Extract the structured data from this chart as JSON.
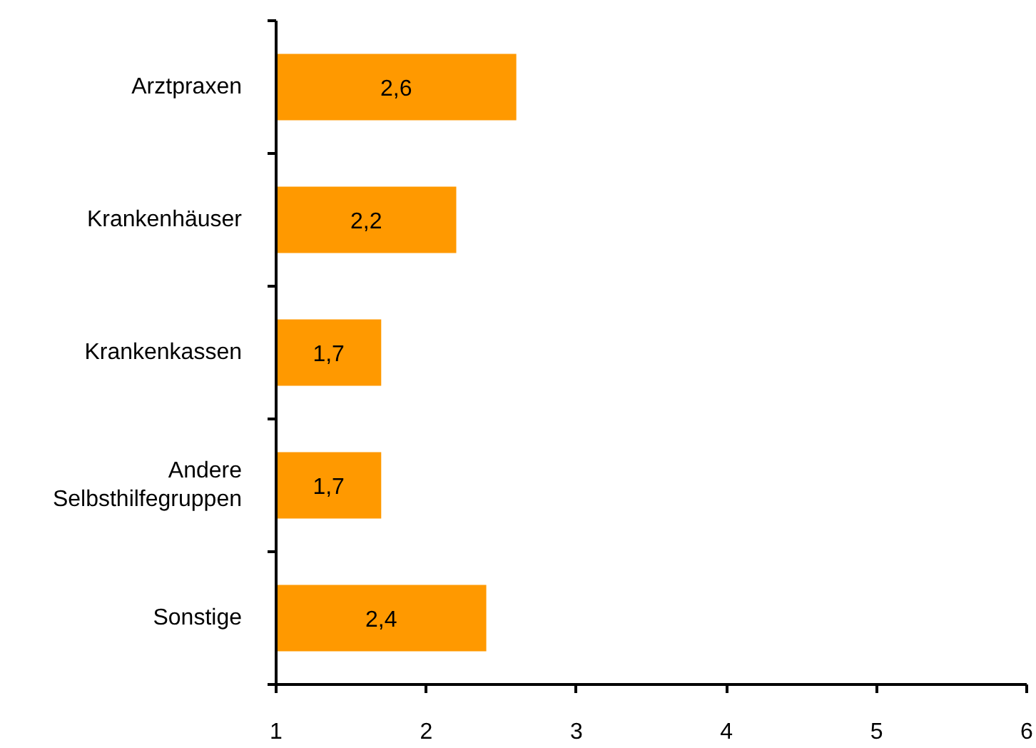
{
  "chart_data": {
    "type": "bar",
    "orientation": "horizontal",
    "categories": [
      "Arztpraxen",
      "Krankenhäuser",
      "Krankenkassen",
      "Andere Selbsthilfegruppen",
      "Sonstige"
    ],
    "values": [
      2.6,
      2.2,
      1.7,
      1.7,
      2.4
    ],
    "color": "#ff9900",
    "value_labels": [
      "2,6",
      "2,2",
      "1,7",
      "1,7",
      "2,4"
    ],
    "xlim": [
      1,
      6
    ],
    "xticks": [
      1,
      2,
      3,
      4,
      5,
      6
    ]
  }
}
